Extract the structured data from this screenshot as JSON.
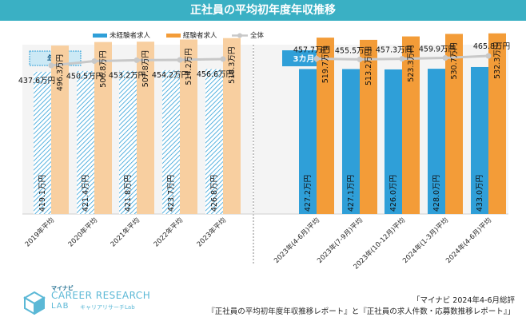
{
  "title": "正社員の平均初年度年収推移",
  "legend": {
    "inexperienced": "未経験者求人",
    "experienced": "経験者求人",
    "overall": "全体"
  },
  "panels": {
    "annual_label": "年間",
    "quarterly_label": "3カ月毎"
  },
  "source": {
    "line1": "「マイナビ 2024年4-6月総評",
    "line2": "『正社員の平均初年度年収推移レポート』と『正社員の求人件数・応募数推移レポート』」"
  },
  "logo": {
    "maynavi": "マイナビ",
    "brand_line1": "CAREER RESEARCH",
    "brand_line2": "LAB",
    "brand_kana": "キャリアリサーチLab"
  },
  "colors": {
    "title_bg": "#3ab0c4",
    "inexperienced": "#2f9fd8",
    "experienced": "#f39c38",
    "experienced_light": "#f8cfa0",
    "overall": "#c8c8c8"
  },
  "chart_data": {
    "type": "bar",
    "ylim": [
      0,
      560
    ],
    "unit": "万円",
    "categories": [
      "2019年平均",
      "2020年平均",
      "2021年平均",
      "2022年平均",
      "2023年平均",
      "2023年(4-6月)平均",
      "2023年(7-9月)平均",
      "2023年(10-12月)平均",
      "2024年(1-3月)平均",
      "2024年(4-6月)平均"
    ],
    "series": [
      {
        "name": "未経験者求人",
        "values": [
          419.1,
          421.4,
          421.8,
          423.7,
          426.8,
          427.2,
          427.1,
          426.0,
          428.0,
          433.0
        ],
        "labels": [
          "419.1万円",
          "421.4万円",
          "421.8万円",
          "423.7万円",
          "426.8万円",
          "427.2万円",
          "427.1万円",
          "426.0万円",
          "428.0万円",
          "433.0万円"
        ]
      },
      {
        "name": "経験者求人",
        "values": [
          496.3,
          506.8,
          507.8,
          514.2,
          518.3,
          519.7,
          513.2,
          523.3,
          530.7,
          532.3
        ],
        "labels": [
          "496.3万円",
          "506.8万円",
          "507.8万円",
          "514.2万円",
          "518.3万円",
          "519.7万円",
          "513.2万円",
          "523.3万円",
          "530.7万円",
          "532.3万円"
        ]
      },
      {
        "name": "全体",
        "values": [
          437.6,
          450.5,
          453.2,
          454.2,
          456.6,
          457.7,
          455.5,
          457.3,
          459.9,
          465.8
        ],
        "labels": [
          "437.6万円",
          "450.5万円",
          "453.2万円",
          "454.2万円",
          "456.6万円",
          "457.7万円",
          "455.5万円",
          "457.3万円",
          "459.9万円",
          "465.8万円"
        ]
      }
    ]
  }
}
